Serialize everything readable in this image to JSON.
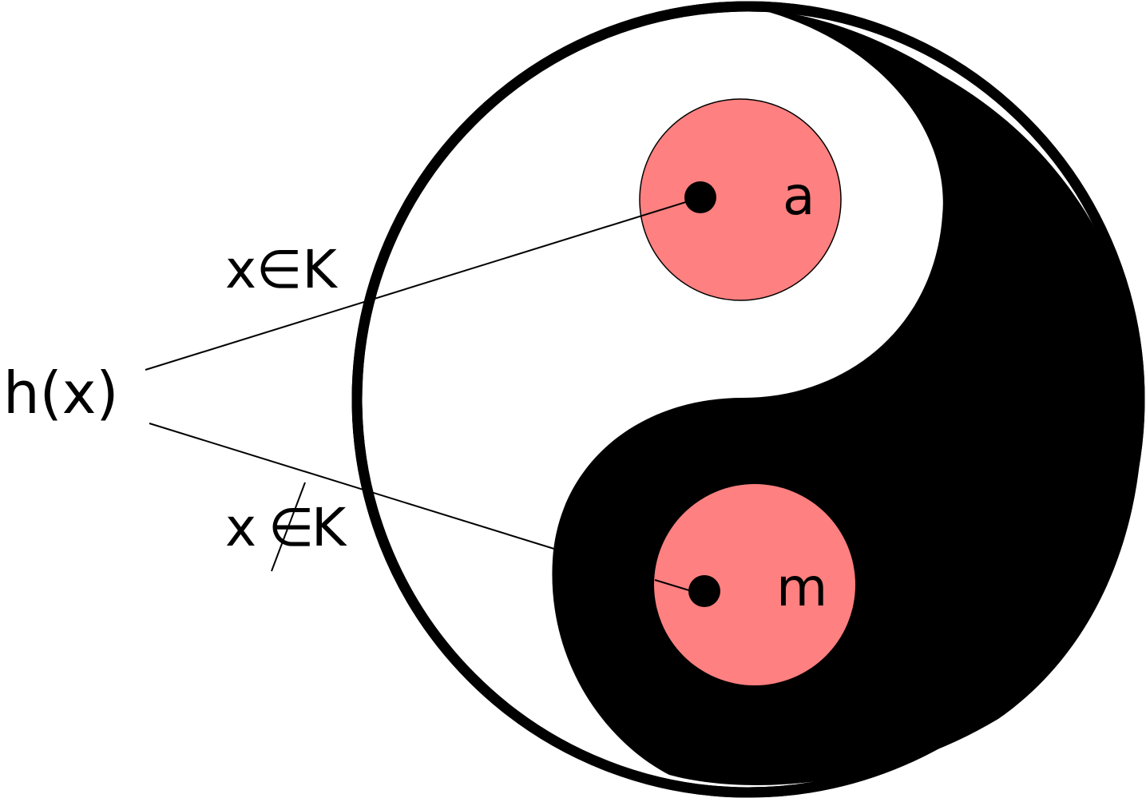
{
  "labels": {
    "function": "h(x)",
    "member": "x∈K",
    "nonmember_x": "x",
    "nonmember_symbol": "∈",
    "nonmember_set": "K",
    "point_a": "a",
    "point_m": "m"
  },
  "colors": {
    "yin": "#000000",
    "yang": "#ffffff",
    "disc_fill": "#ff8080",
    "line": "#000000"
  }
}
